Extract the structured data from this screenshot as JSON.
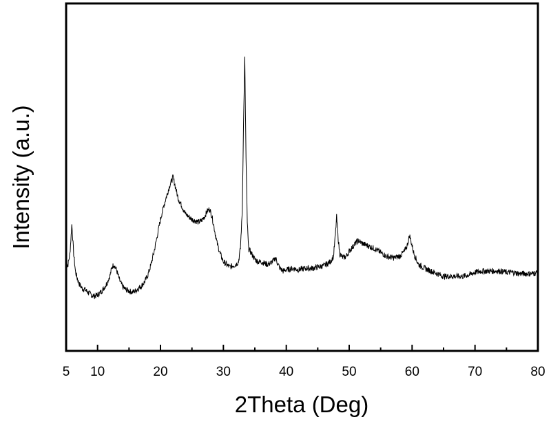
{
  "chart_data": {
    "type": "line",
    "title": "",
    "xlabel": "2Theta (Deg)",
    "ylabel": "Intensity (a.u.)",
    "xlim": [
      5,
      80
    ],
    "ylim": [
      0,
      100
    ],
    "y_tick_labels": false,
    "grid": false,
    "legend": "none",
    "x_ticks": [
      5,
      10,
      20,
      30,
      40,
      50,
      60,
      70,
      80
    ],
    "x_minor_ticks": [
      15,
      25,
      35,
      45,
      55,
      65,
      75
    ],
    "line_color": "#000000",
    "series": [
      {
        "values_xy": [
          [
            5.0,
            21
          ],
          [
            5.3,
            22
          ],
          [
            5.6,
            26
          ],
          [
            5.8,
            33
          ],
          [
            5.9,
            37
          ],
          [
            6.0,
            34
          ],
          [
            6.2,
            26
          ],
          [
            6.5,
            19
          ],
          [
            7.0,
            15
          ],
          [
            7.5,
            13
          ],
          [
            8.0,
            12.5
          ],
          [
            8.5,
            11.5
          ],
          [
            9.0,
            10.5
          ],
          [
            9.5,
            10
          ],
          [
            10.0,
            10.5
          ],
          [
            10.5,
            11.5
          ],
          [
            11.0,
            13
          ],
          [
            11.5,
            15
          ],
          [
            12.0,
            18
          ],
          [
            12.3,
            21
          ],
          [
            12.6,
            22
          ],
          [
            13.0,
            20
          ],
          [
            13.5,
            16
          ],
          [
            14.0,
            13.5
          ],
          [
            14.5,
            12.5
          ],
          [
            15.0,
            12
          ],
          [
            15.5,
            11.5
          ],
          [
            16.0,
            12
          ],
          [
            16.5,
            13
          ],
          [
            17.0,
            14
          ],
          [
            17.5,
            15.5
          ],
          [
            18.0,
            18
          ],
          [
            18.5,
            22
          ],
          [
            19.0,
            27
          ],
          [
            19.5,
            33
          ],
          [
            20.0,
            39
          ],
          [
            20.5,
            44
          ],
          [
            21.0,
            48
          ],
          [
            21.5,
            52
          ],
          [
            22.0,
            55
          ],
          [
            22.4,
            51
          ],
          [
            22.8,
            47
          ],
          [
            23.2,
            45
          ],
          [
            23.6,
            43
          ],
          [
            24.0,
            41
          ],
          [
            24.5,
            40
          ],
          [
            25.0,
            39
          ],
          [
            25.5,
            38.5
          ],
          [
            26.0,
            38
          ],
          [
            26.5,
            38.5
          ],
          [
            27.0,
            40
          ],
          [
            27.4,
            42
          ],
          [
            27.8,
            43
          ],
          [
            28.2,
            40
          ],
          [
            28.6,
            35
          ],
          [
            29.0,
            30
          ],
          [
            29.5,
            26
          ],
          [
            30.0,
            23
          ],
          [
            30.5,
            22
          ],
          [
            31.0,
            21
          ],
          [
            31.5,
            21.5
          ],
          [
            32.0,
            22
          ],
          [
            32.4,
            23
          ],
          [
            32.7,
            28
          ],
          [
            33.0,
            42
          ],
          [
            33.2,
            75
          ],
          [
            33.4,
            100
          ],
          [
            33.6,
            62
          ],
          [
            33.8,
            38
          ],
          [
            34.0,
            28
          ],
          [
            34.5,
            26
          ],
          [
            35.0,
            24
          ],
          [
            35.5,
            23
          ],
          [
            36.0,
            23
          ],
          [
            36.5,
            22.5
          ],
          [
            37.0,
            22
          ],
          [
            37.5,
            22.5
          ],
          [
            38.0,
            23.5
          ],
          [
            38.3,
            24.5
          ],
          [
            38.6,
            22.5
          ],
          [
            39.0,
            20.5
          ],
          [
            39.5,
            19.5
          ],
          [
            40.0,
            20
          ],
          [
            41.0,
            20.5
          ],
          [
            42.0,
            20
          ],
          [
            43.0,
            20.5
          ],
          [
            44.0,
            20.5
          ],
          [
            45.0,
            21
          ],
          [
            46.0,
            21.5
          ],
          [
            47.0,
            23
          ],
          [
            47.5,
            25
          ],
          [
            47.8,
            33
          ],
          [
            48.0,
            40
          ],
          [
            48.2,
            33
          ],
          [
            48.5,
            26
          ],
          [
            49.0,
            24.5
          ],
          [
            49.5,
            25
          ],
          [
            50.0,
            27
          ],
          [
            50.5,
            28.5
          ],
          [
            51.0,
            30
          ],
          [
            51.5,
            31
          ],
          [
            52.0,
            30
          ],
          [
            53.0,
            29
          ],
          [
            54.0,
            28
          ],
          [
            55.0,
            26.5
          ],
          [
            56.0,
            25
          ],
          [
            57.0,
            24.5
          ],
          [
            58.0,
            25
          ],
          [
            58.8,
            27
          ],
          [
            59.2,
            29
          ],
          [
            59.6,
            33
          ],
          [
            59.9,
            30
          ],
          [
            60.3,
            26
          ],
          [
            61.0,
            22
          ],
          [
            62.0,
            20.5
          ],
          [
            63.0,
            19.5
          ],
          [
            64.0,
            18.5
          ],
          [
            65.0,
            17.5
          ],
          [
            66.0,
            17.5
          ],
          [
            67.0,
            17.5
          ],
          [
            68.0,
            17.5
          ],
          [
            69.0,
            18
          ],
          [
            70.0,
            19
          ],
          [
            71.0,
            19.5
          ],
          [
            72.0,
            19.5
          ],
          [
            73.0,
            19.5
          ],
          [
            74.0,
            19.5
          ],
          [
            75.0,
            19
          ],
          [
            76.0,
            19
          ],
          [
            77.0,
            18.5
          ],
          [
            78.0,
            18.5
          ],
          [
            79.0,
            18.5
          ],
          [
            80.0,
            19
          ]
        ]
      }
    ]
  }
}
